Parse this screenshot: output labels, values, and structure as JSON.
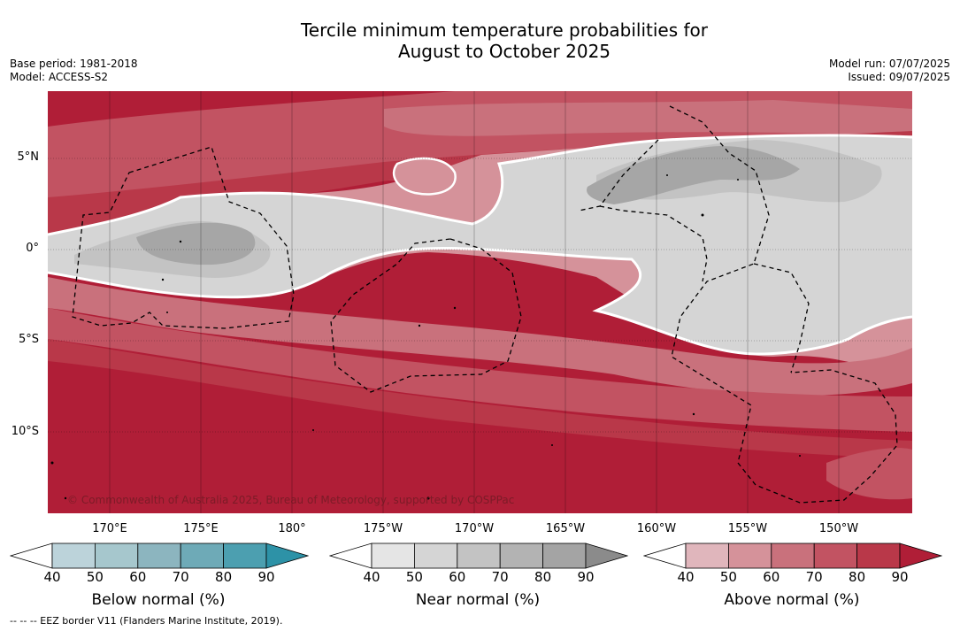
{
  "title_line1": "Tercile minimum temperature probabilities for",
  "title_line2": "August to October 2025",
  "base_period": "Base period: 1981-2018",
  "model": "Model: ACCESS-S2",
  "model_run": "Model run: 07/07/2025",
  "issued": "Issued: 09/07/2025",
  "copyright": "© Commonwealth of Australia 2025, Bureau of Meteorology, supported by COSPPac",
  "footnote": "--  --  -- EEZ border V11 (Flanders Marine Institute, 2019).",
  "lat_labels": [
    "5°N",
    "0°",
    "5°S",
    "10°S"
  ],
  "lon_labels": [
    "170°E",
    "175°E",
    "180°",
    "175°W",
    "170°W",
    "165°W",
    "160°W",
    "155°W",
    "150°W"
  ],
  "map_extent": {
    "lon_min": 166.2,
    "lon_max": 213.4,
    "lat_min": -14.4,
    "lat_max": 8.7
  },
  "colorbars": [
    {
      "title": "Below normal (%)",
      "ticks": [
        "40",
        "50",
        "60",
        "70",
        "80",
        "90"
      ],
      "colors": [
        "#ffffff",
        "#bcd3da",
        "#a6c7cd",
        "#8cb5bf",
        "#6eaab7",
        "#4c9fb0",
        "#2d92a7"
      ]
    },
    {
      "title": "Near normal (%)",
      "ticks": [
        "40",
        "50",
        "60",
        "70",
        "80",
        "90"
      ],
      "colors": [
        "#ffffff",
        "#e5e5e5",
        "#d5d5d5",
        "#c3c3c3",
        "#b3b3b3",
        "#a4a4a4",
        "#8b8b8b"
      ]
    },
    {
      "title": "Above normal (%)",
      "ticks": [
        "40",
        "50",
        "60",
        "70",
        "80",
        "90"
      ],
      "colors": [
        "#ffffff",
        "#e0b6bc",
        "#d5929a",
        "#c9717c",
        "#c25362",
        "#b93849",
        "#b01e37"
      ]
    }
  ],
  "colors": {
    "above_90": "#b01e37",
    "above_80": "#b93849",
    "above_70": "#c25362",
    "above_60": "#c9717c",
    "above_50": "#d5929a",
    "above_40": "#e0b6bc",
    "near_40": "#e5e5e5",
    "near_50": "#d5d5d5",
    "near_60": "#c3c3c3",
    "near_70": "#a6a6a6"
  }
}
